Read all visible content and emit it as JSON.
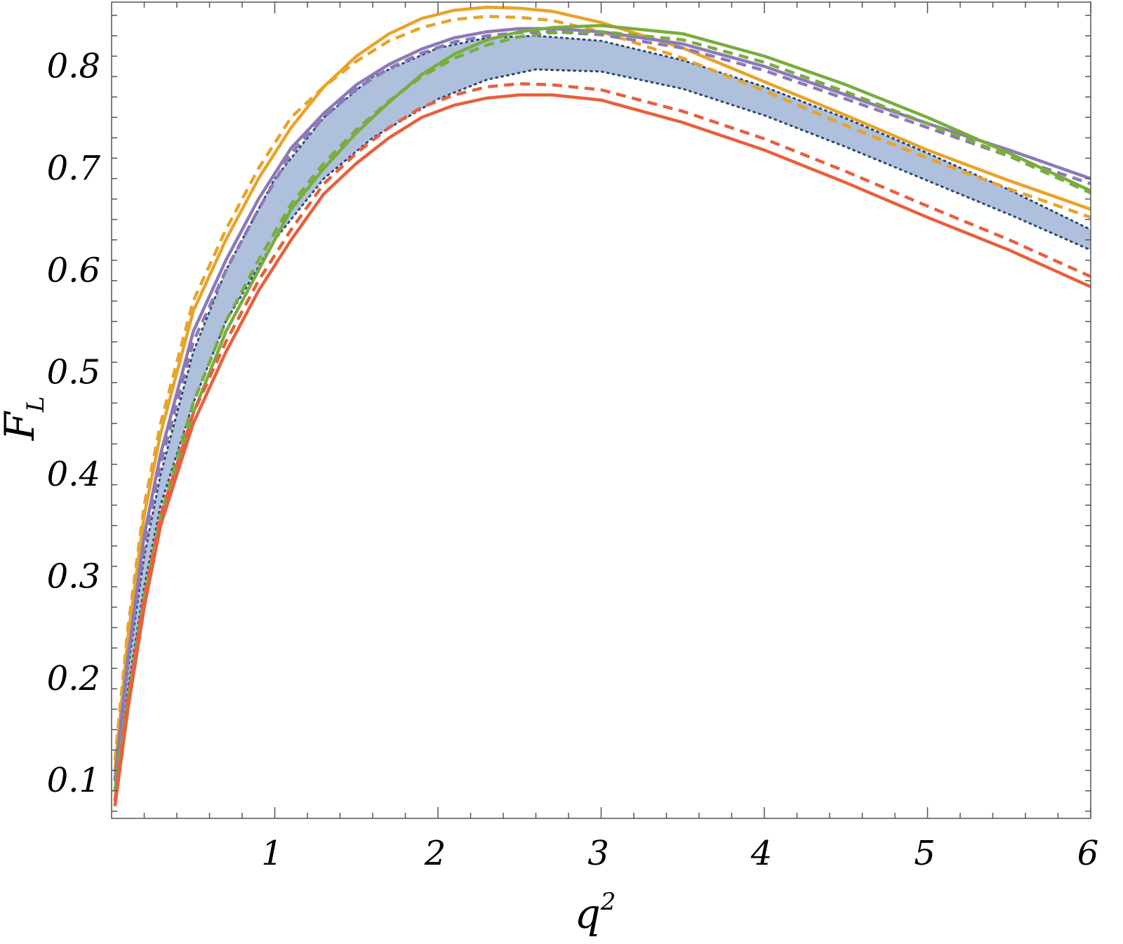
{
  "chart_data": {
    "type": "line",
    "xlabel": "q",
    "xlabel_superscript": "2",
    "ylabel": "F",
    "ylabel_subscript": "L",
    "xlim": [
      0.0,
      6.0
    ],
    "ylim": [
      0.063,
      0.863
    ],
    "xticks": [
      {
        "value": 1,
        "label": "1"
      },
      {
        "value": 2,
        "label": "2"
      },
      {
        "value": 3,
        "label": "3"
      },
      {
        "value": 4,
        "label": "4"
      },
      {
        "value": 5,
        "label": "5"
      },
      {
        "value": 6,
        "label": "6"
      }
    ],
    "yticks": [
      {
        "value": 0.1,
        "label": "0.1"
      },
      {
        "value": 0.2,
        "label": "0.2"
      },
      {
        "value": 0.3,
        "label": "0.3"
      },
      {
        "value": 0.4,
        "label": "0.4"
      },
      {
        "value": 0.5,
        "label": "0.5"
      },
      {
        "value": 0.6,
        "label": "0.6"
      },
      {
        "value": 0.7,
        "label": "0.7"
      },
      {
        "value": 0.8,
        "label": "0.8"
      }
    ],
    "grid": false,
    "band": {
      "color": "#aec0db",
      "edge_color": "#2e4a72",
      "x": [
        0.02,
        0.1,
        0.2,
        0.3,
        0.5,
        0.7,
        1.0,
        1.3,
        1.6,
        2.0,
        2.3,
        2.6,
        3.0,
        3.5,
        4.0,
        4.5,
        5.0,
        5.5,
        6.0
      ],
      "upper": [
        0.1,
        0.21,
        0.32,
        0.4,
        0.52,
        0.6,
        0.69,
        0.75,
        0.79,
        0.818,
        0.828,
        0.83,
        0.825,
        0.806,
        0.78,
        0.749,
        0.715,
        0.679,
        0.64
      ],
      "lower": [
        0.085,
        0.19,
        0.29,
        0.37,
        0.47,
        0.55,
        0.63,
        0.69,
        0.73,
        0.768,
        0.787,
        0.797,
        0.795,
        0.778,
        0.752,
        0.721,
        0.688,
        0.655,
        0.62
      ]
    },
    "series": [
      {
        "color": "#e8a32a",
        "dash": "solid",
        "x": [
          0.02,
          0.1,
          0.2,
          0.3,
          0.5,
          0.7,
          0.9,
          1.1,
          1.3,
          1.5,
          1.7,
          1.9,
          2.1,
          2.3,
          2.5,
          2.7,
          3.0,
          3.5,
          4.0,
          4.5,
          5.0,
          5.5,
          6.0
        ],
        "y": [
          0.11,
          0.24,
          0.36,
          0.44,
          0.56,
          0.63,
          0.69,
          0.74,
          0.78,
          0.81,
          0.832,
          0.847,
          0.855,
          0.858,
          0.857,
          0.854,
          0.843,
          0.818,
          0.785,
          0.752,
          0.718,
          0.688,
          0.66
        ]
      },
      {
        "color": "#e8a32a",
        "dash": "dashed",
        "x": [
          0.02,
          0.1,
          0.2,
          0.3,
          0.5,
          0.7,
          0.9,
          1.1,
          1.3,
          1.5,
          1.7,
          1.9,
          2.1,
          2.3,
          2.5,
          2.7,
          3.0,
          3.5,
          4.0,
          4.5,
          5.0,
          5.5,
          6.0
        ],
        "y": [
          0.12,
          0.25,
          0.37,
          0.45,
          0.57,
          0.64,
          0.7,
          0.75,
          0.78,
          0.805,
          0.825,
          0.838,
          0.846,
          0.849,
          0.848,
          0.845,
          0.834,
          0.808,
          0.776,
          0.742,
          0.71,
          0.68,
          0.652
        ]
      },
      {
        "color": "#8c79b8",
        "dash": "solid",
        "x": [
          0.02,
          0.1,
          0.2,
          0.3,
          0.5,
          0.7,
          0.9,
          1.1,
          1.3,
          1.5,
          1.7,
          1.9,
          2.1,
          2.3,
          2.5,
          2.7,
          3.0,
          3.5,
          4.0,
          4.5,
          5.0,
          5.5,
          6.0
        ],
        "y": [
          0.1,
          0.22,
          0.34,
          0.42,
          0.54,
          0.61,
          0.67,
          0.72,
          0.754,
          0.782,
          0.802,
          0.817,
          0.828,
          0.834,
          0.837,
          0.837,
          0.834,
          0.822,
          0.8,
          0.772,
          0.744,
          0.718,
          0.69
        ]
      },
      {
        "color": "#8c79b8",
        "dash": "dashed",
        "x": [
          0.02,
          0.1,
          0.2,
          0.3,
          0.5,
          0.7,
          0.9,
          1.1,
          1.3,
          1.5,
          1.7,
          1.9,
          2.1,
          2.3,
          2.5,
          2.7,
          3.0,
          3.5,
          4.0,
          4.5,
          5.0,
          5.5,
          6.0
        ],
        "y": [
          0.1,
          0.22,
          0.33,
          0.41,
          0.53,
          0.6,
          0.66,
          0.715,
          0.75,
          0.778,
          0.798,
          0.813,
          0.824,
          0.83,
          0.833,
          0.834,
          0.831,
          0.818,
          0.796,
          0.768,
          0.74,
          0.712,
          0.685
        ]
      },
      {
        "color": "#78ad3d",
        "dash": "solid",
        "x": [
          0.02,
          0.1,
          0.2,
          0.3,
          0.5,
          0.7,
          0.9,
          1.1,
          1.3,
          1.5,
          1.7,
          1.9,
          2.1,
          2.3,
          2.5,
          2.7,
          3.0,
          3.5,
          4.0,
          4.5,
          5.0,
          5.5,
          6.0
        ],
        "y": [
          0.09,
          0.18,
          0.28,
          0.35,
          0.46,
          0.54,
          0.6,
          0.66,
          0.7,
          0.735,
          0.765,
          0.792,
          0.812,
          0.826,
          0.834,
          0.838,
          0.84,
          0.832,
          0.81,
          0.782,
          0.75,
          0.715,
          0.678
        ]
      },
      {
        "color": "#78ad3d",
        "dash": "dashed",
        "x": [
          0.02,
          0.1,
          0.2,
          0.3,
          0.5,
          0.7,
          0.9,
          1.1,
          1.3,
          1.5,
          1.7,
          1.9,
          2.1,
          2.3,
          2.5,
          2.7,
          3.0,
          3.5,
          4.0,
          4.5,
          5.0,
          5.5,
          6.0
        ],
        "y": [
          0.09,
          0.18,
          0.28,
          0.36,
          0.47,
          0.55,
          0.61,
          0.665,
          0.705,
          0.738,
          0.766,
          0.79,
          0.808,
          0.821,
          0.829,
          0.833,
          0.834,
          0.826,
          0.804,
          0.775,
          0.744,
          0.712,
          0.676
        ]
      },
      {
        "color": "#e8603c",
        "dash": "solid",
        "x": [
          0.02,
          0.1,
          0.2,
          0.3,
          0.5,
          0.7,
          0.9,
          1.1,
          1.3,
          1.5,
          1.7,
          1.9,
          2.1,
          2.3,
          2.5,
          2.7,
          3.0,
          3.5,
          4.0,
          4.5,
          5.0,
          5.5,
          6.0
        ],
        "y": [
          0.075,
          0.17,
          0.27,
          0.35,
          0.45,
          0.52,
          0.58,
          0.63,
          0.675,
          0.705,
          0.73,
          0.75,
          0.762,
          0.769,
          0.772,
          0.772,
          0.767,
          0.745,
          0.718,
          0.686,
          0.652,
          0.62,
          0.584
        ]
      },
      {
        "color": "#e8603c",
        "dash": "dashed",
        "x": [
          0.02,
          0.1,
          0.2,
          0.3,
          0.5,
          0.7,
          0.9,
          1.1,
          1.3,
          1.5,
          1.7,
          1.9,
          2.1,
          2.3,
          2.5,
          2.7,
          3.0,
          3.5,
          4.0,
          4.5,
          5.0,
          5.5,
          6.0
        ],
        "y": [
          0.08,
          0.18,
          0.28,
          0.36,
          0.46,
          0.53,
          0.59,
          0.64,
          0.685,
          0.715,
          0.74,
          0.76,
          0.772,
          0.78,
          0.783,
          0.782,
          0.777,
          0.756,
          0.729,
          0.697,
          0.663,
          0.63,
          0.594
        ]
      }
    ]
  }
}
